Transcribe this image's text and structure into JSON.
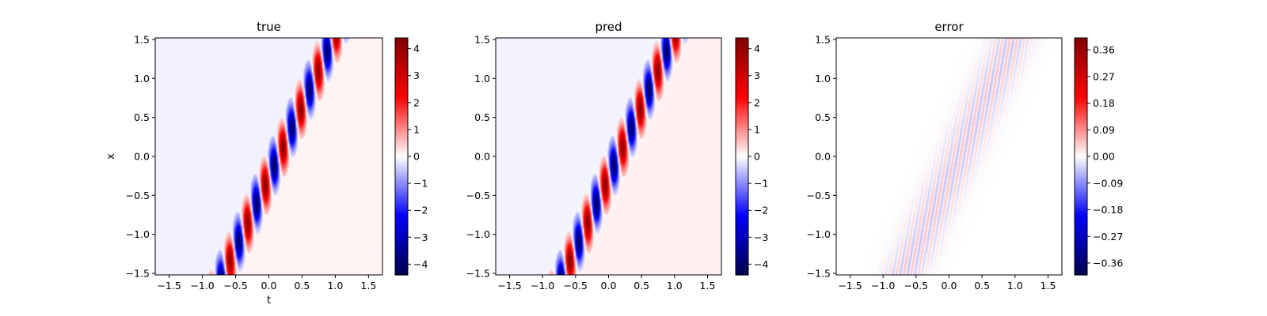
{
  "chart_data": [
    {
      "type": "heatmap",
      "title": "true",
      "xlabel": "t",
      "ylabel": "x",
      "xlim": [
        -1.71,
        1.71
      ],
      "ylim": [
        -1.52,
        1.52
      ],
      "xticks": [
        -1.5,
        -1.0,
        -0.5,
        0.0,
        0.5,
        1.0,
        1.5
      ],
      "xtick_labels": [
        "−1.5",
        "−1.0",
        "−0.5",
        "0.0",
        "0.5",
        "1.0",
        "1.5"
      ],
      "yticks": [
        -1.5,
        -1.0,
        -0.5,
        0.0,
        0.5,
        1.0,
        1.5
      ],
      "ytick_labels": [
        "−1.5",
        "−1.0",
        "−0.5",
        "0.0",
        "0.5",
        "1.0",
        "1.5"
      ],
      "colormap": "seismic",
      "colorbar": {
        "vmin": -4.4,
        "vmax": 4.4,
        "ticks": [
          -4,
          -3,
          -2,
          -1,
          0,
          1,
          2,
          3,
          4
        ],
        "tick_labels": [
          "−4",
          "−3",
          "−2",
          "−1",
          "0",
          "1",
          "2",
          "3",
          "4"
        ]
      },
      "field": {
        "slope": 0.545,
        "intercept": 0.147,
        "amplitude": 4.2,
        "background_left": -0.12,
        "background_right": 0.1
      }
    },
    {
      "type": "heatmap",
      "title": "pred",
      "xlabel": "",
      "ylabel": "",
      "xlim": [
        -1.71,
        1.71
      ],
      "ylim": [
        -1.52,
        1.52
      ],
      "xticks": [
        -1.5,
        -1.0,
        -0.5,
        0.0,
        0.5,
        1.0,
        1.5
      ],
      "xtick_labels": [
        "−1.5",
        "−1.0",
        "−0.5",
        "0.0",
        "0.5",
        "1.0",
        "1.5"
      ],
      "yticks": [
        -1.5,
        -1.0,
        -0.5,
        0.0,
        0.5,
        1.0,
        1.5
      ],
      "ytick_labels": [
        "−1.5",
        "−1.0",
        "−0.5",
        "0.0",
        "0.5",
        "1.0",
        "1.5"
      ],
      "colormap": "seismic",
      "colorbar": {
        "vmin": -4.4,
        "vmax": 4.4,
        "ticks": [
          -4,
          -3,
          -2,
          -1,
          0,
          1,
          2,
          3,
          4
        ],
        "tick_labels": [
          "−4",
          "−3",
          "−2",
          "−1",
          "0",
          "1",
          "2",
          "3",
          "4"
        ]
      },
      "field": {
        "slope": 0.545,
        "intercept": 0.147,
        "amplitude": 4.2,
        "background_left": -0.1,
        "background_right": 0.12
      }
    },
    {
      "type": "heatmap",
      "title": "error",
      "xlabel": "",
      "ylabel": "",
      "xlim": [
        -1.71,
        1.71
      ],
      "ylim": [
        -1.52,
        1.52
      ],
      "xticks": [
        -1.5,
        -1.0,
        -0.5,
        0.0,
        0.5,
        1.0,
        1.5
      ],
      "xtick_labels": [
        "−1.5",
        "−1.0",
        "−0.5",
        "0.0",
        "0.5",
        "1.0",
        "1.5"
      ],
      "yticks": [
        -1.5,
        -1.0,
        -0.5,
        0.0,
        0.5,
        1.0,
        1.5
      ],
      "ytick_labels": [
        "−1.5",
        "−1.0",
        "−0.5",
        "0.0",
        "0.5",
        "1.0",
        "1.5"
      ],
      "colormap": "seismic",
      "colorbar": {
        "vmin": -0.4,
        "vmax": 0.4,
        "ticks": [
          -0.36,
          -0.27,
          -0.18,
          -0.09,
          0.0,
          0.09,
          0.18,
          0.27,
          0.36
        ],
        "tick_labels": [
          "−0.36",
          "−0.27",
          "−0.18",
          "−0.09",
          "0.00",
          "0.09",
          "0.18",
          "0.27",
          "0.36"
        ]
      },
      "field": {
        "slope": 0.545,
        "intercept": 0.147,
        "amplitude": 0.1,
        "background_left": 0.0,
        "background_right": 0.0
      }
    }
  ]
}
